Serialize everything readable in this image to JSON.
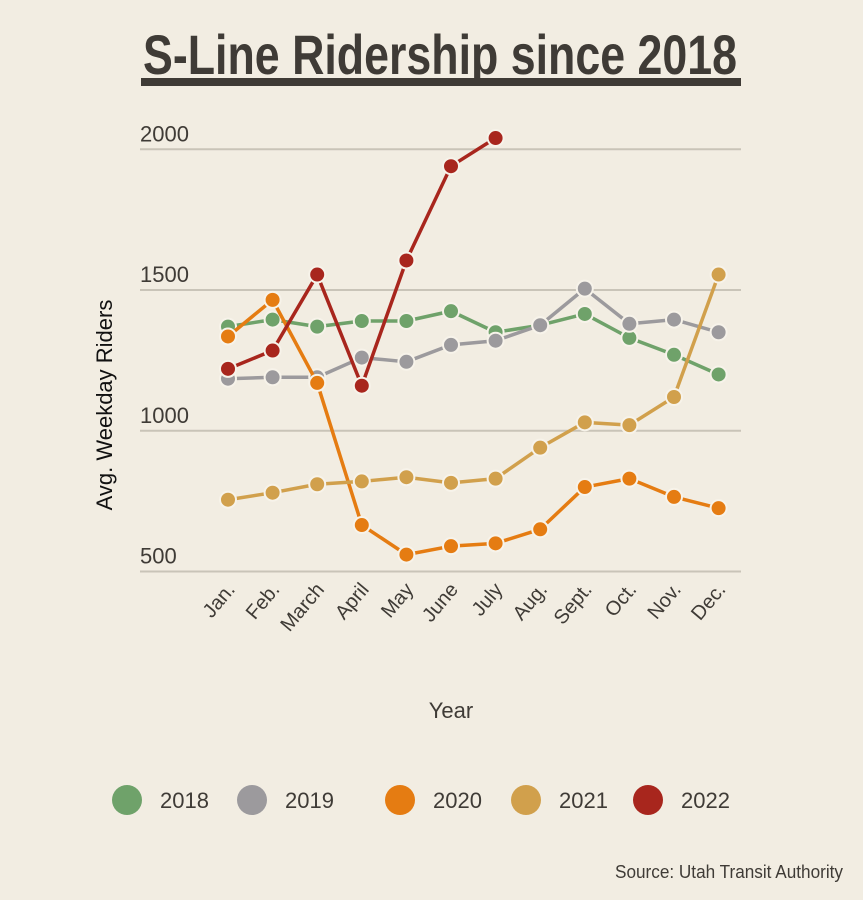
{
  "chart_data": {
    "type": "line",
    "title": "S-Line Ridership since 2018",
    "xlabel": "Year",
    "ylabel": "Avg. Weekday Riders",
    "ylim": [
      500,
      2000
    ],
    "yticks": [
      "500",
      "1000",
      "1500",
      "2000"
    ],
    "grid": true,
    "legend_position": "bottom",
    "categories": [
      "Jan.",
      "Feb.",
      "March",
      "April",
      "May",
      "June",
      "July",
      "Aug.",
      "Sept.",
      "Oct.",
      "Nov.",
      "Dec."
    ],
    "series": [
      {
        "name": "2018",
        "color": "#6fa26a",
        "values": [
          1370,
          1395,
          1370,
          1390,
          1390,
          1425,
          1350,
          1375,
          1415,
          1330,
          1270,
          1200
        ]
      },
      {
        "name": "2019",
        "color": "#9c9a9d",
        "values": [
          1185,
          1190,
          1190,
          1260,
          1245,
          1305,
          1320,
          1375,
          1505,
          1380,
          1395,
          1350
        ]
      },
      {
        "name": "2020",
        "color": "#e57c12",
        "values": [
          1335,
          1465,
          1170,
          665,
          560,
          590,
          600,
          650,
          800,
          830,
          765,
          725
        ]
      },
      {
        "name": "2021",
        "color": "#d1a04c",
        "values": [
          755,
          780,
          810,
          820,
          835,
          815,
          830,
          940,
          1030,
          1020,
          1120,
          1555
        ]
      },
      {
        "name": "2022",
        "color": "#a8261d",
        "values": [
          1220,
          1285,
          1555,
          1160,
          1605,
          1940,
          2040,
          null,
          null,
          null,
          null,
          null
        ]
      }
    ],
    "source": "Source: Utah Transit Authority"
  }
}
